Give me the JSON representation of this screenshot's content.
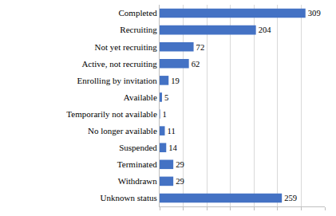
{
  "chart_data": {
    "type": "bar",
    "orientation": "horizontal",
    "categories": [
      "Completed",
      "Recruiting",
      "Not yet recruiting",
      "Active, not recruiting",
      "Enrolling by invitation",
      "Available",
      "Temporarily not available",
      "No longer available",
      "Suspended",
      "Terminated",
      "Withdrawn",
      "Unknown status"
    ],
    "values": [
      309,
      204,
      72,
      62,
      19,
      5,
      1,
      11,
      14,
      29,
      29,
      259
    ],
    "color": "#4472c4",
    "xlim": [
      0,
      350
    ],
    "xticks": [
      0,
      50,
      100,
      150,
      200,
      250,
      300,
      350
    ],
    "grid": true,
    "data_labels": true,
    "tick_labels": "y"
  }
}
